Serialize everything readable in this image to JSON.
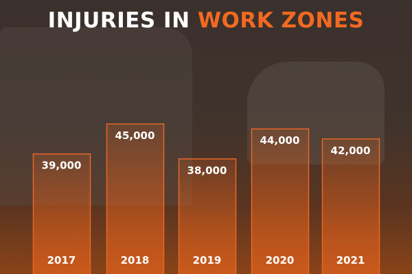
{
  "title": {
    "part1": "INJURIES IN ",
    "part2": "WORK ZONES"
  },
  "colors": {
    "accent": "#f26a21",
    "bar_outline": "#e8662a",
    "text": "#ffffff"
  },
  "chart_data": {
    "type": "bar",
    "title": "INJURIES IN WORK ZONES",
    "categories": [
      "2017",
      "2018",
      "2019",
      "2020",
      "2021"
    ],
    "values": [
      39000,
      45000,
      38000,
      44000,
      42000
    ],
    "value_labels": [
      "39,000",
      "45,000",
      "38,000",
      "44,000",
      "42,000"
    ],
    "xlabel": "",
    "ylabel": "",
    "grid": false,
    "legend": "none"
  }
}
